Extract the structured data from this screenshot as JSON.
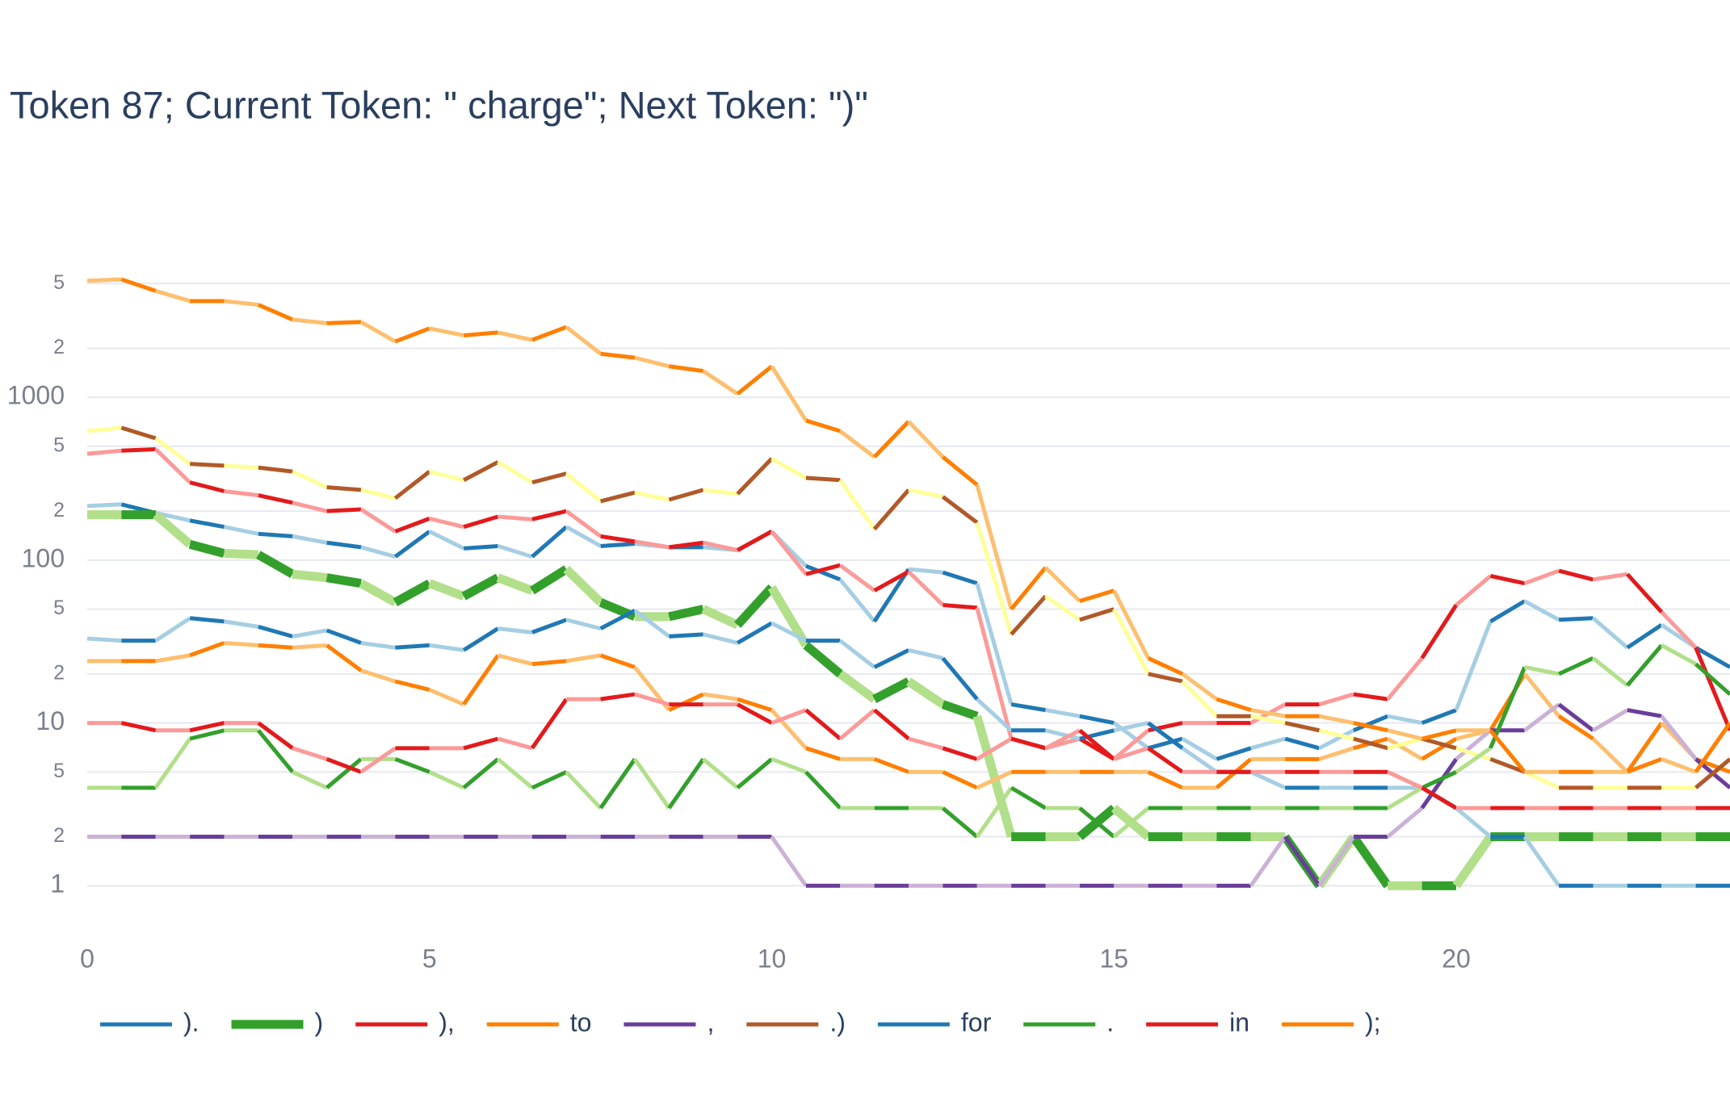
{
  "chart_data": {
    "type": "line",
    "title": "Token 87; Current Token: \" charge\"; Next Token: \")\"",
    "log_y": true,
    "grid": true,
    "x": [
      0,
      0.5,
      1,
      1.5,
      2,
      2.5,
      3,
      3.5,
      4,
      4.5,
      5,
      5.5,
      6,
      6.5,
      7,
      7.5,
      8,
      8.5,
      9,
      9.5,
      10,
      10.5,
      11,
      11.5,
      12,
      12.5,
      13,
      13.5,
      14,
      14.5,
      15,
      15.5,
      16,
      16.5,
      17,
      17.5,
      18,
      18.5,
      19,
      19.5,
      20,
      20.5,
      21,
      21.5,
      22,
      22.5,
      23,
      23.5,
      24
    ],
    "xlim": [
      0,
      24
    ],
    "xticks": [
      0,
      5,
      10,
      15,
      20
    ],
    "ylim": [
      0.5,
      8000
    ],
    "yticks": [
      1,
      2,
      5,
      10,
      {
        "value": 20,
        "label": "2"
      },
      {
        "value": 50,
        "label": "5"
      },
      100,
      {
        "value": 200,
        "label": "2"
      },
      {
        "value": 500,
        "label": "5"
      },
      1000,
      {
        "value": 2000,
        "label": "2"
      },
      {
        "value": 5000,
        "label": "5"
      }
    ],
    "series": [
      {
        "name": ").",
        "color": "#1f78b4",
        "light_color": "#a6cee3",
        "line_width": 5,
        "values": [
          215,
          220,
          195,
          175,
          160,
          145,
          140,
          128,
          120,
          105,
          150,
          118,
          122,
          105,
          160,
          122,
          126,
          120,
          120,
          115,
          150,
          92,
          76,
          42,
          88,
          84,
          72,
          13,
          12,
          11,
          10,
          7,
          8,
          6,
          7,
          8,
          7,
          9,
          11,
          10,
          12,
          42,
          56,
          43,
          44,
          29,
          40,
          29,
          22
        ]
      },
      {
        "name": ")",
        "color": "#33a02c",
        "light_color": "#b2df8a",
        "line_width": 11,
        "values": [
          190,
          190,
          190,
          125,
          110,
          108,
          82,
          78,
          72,
          55,
          72,
          60,
          78,
          65,
          88,
          55,
          45,
          45,
          50,
          40,
          68,
          30,
          20,
          14,
          18,
          13,
          11,
          2,
          2,
          2,
          3,
          2,
          2,
          2,
          2,
          2,
          1,
          2,
          1,
          1,
          1,
          2,
          2,
          2,
          2,
          2,
          2,
          2,
          2
        ]
      },
      {
        "name": "),",
        "color": "#e31a1c",
        "light_color": "#fb9a99",
        "line_width": 5,
        "values": [
          450,
          470,
          480,
          300,
          265,
          250,
          225,
          200,
          205,
          150,
          180,
          160,
          185,
          178,
          200,
          140,
          130,
          120,
          128,
          115,
          150,
          82,
          93,
          65,
          85,
          53,
          51,
          8,
          7,
          8,
          6,
          9,
          10,
          10,
          10,
          13,
          13,
          15,
          14,
          25,
          53,
          80,
          72,
          86,
          76,
          82,
          48,
          29,
          9
        ]
      },
      {
        "name": "to",
        "color": "#ff7f00",
        "light_color": "#fdbf6f",
        "line_width": 5,
        "values": [
          24,
          24,
          24,
          26,
          31,
          30,
          29,
          30,
          21,
          18,
          16,
          13,
          26,
          23,
          24,
          26,
          22,
          12,
          15,
          14,
          12,
          7,
          6,
          6,
          5,
          5,
          4,
          5,
          5,
          5,
          5,
          5,
          4,
          4,
          6,
          6,
          6,
          7,
          8,
          6,
          8,
          9,
          20,
          11,
          8,
          5,
          10,
          6,
          5
        ]
      },
      {
        "name": ",",
        "color": "#6a3d9a",
        "light_color": "#cab2d6",
        "line_width": 5,
        "values": [
          2,
          2,
          2,
          2,
          2,
          2,
          2,
          2,
          2,
          2,
          2,
          2,
          2,
          2,
          2,
          2,
          2,
          2,
          2,
          2,
          2,
          1,
          1,
          1,
          1,
          1,
          1,
          1,
          1,
          1,
          1,
          1,
          1,
          1,
          1,
          2,
          1,
          2,
          2,
          3,
          6,
          9,
          9,
          13,
          9,
          12,
          11,
          6,
          4
        ]
      },
      {
        "name": ".)",
        "color": "#b15928",
        "light_color": "#ffff99",
        "line_width": 5,
        "values": [
          620,
          650,
          560,
          390,
          380,
          370,
          350,
          280,
          270,
          240,
          350,
          310,
          400,
          300,
          340,
          230,
          260,
          235,
          270,
          255,
          420,
          320,
          310,
          155,
          270,
          245,
          170,
          35,
          60,
          43,
          50,
          20,
          18,
          11,
          11,
          10,
          9,
          8,
          7,
          8,
          7,
          6,
          5,
          4,
          4,
          4,
          4,
          4,
          6
        ]
      },
      {
        "name": "for",
        "color": "#1f78b4",
        "light_color": "#a6cee3",
        "line_width": 5,
        "values": [
          33,
          32,
          32,
          44,
          42,
          39,
          34,
          37,
          31,
          29,
          30,
          28,
          38,
          36,
          43,
          38,
          49,
          34,
          35,
          31,
          41,
          32,
          32,
          22,
          28,
          25,
          14,
          9,
          9,
          8,
          9,
          10,
          7,
          5,
          5,
          4,
          4,
          4,
          4,
          4,
          3,
          2,
          2,
          1,
          1,
          1,
          1,
          1,
          1
        ]
      },
      {
        "name": ".",
        "color": "#33a02c",
        "light_color": "#b2df8a",
        "line_width": 5,
        "values": [
          4,
          4,
          4,
          8,
          9,
          9,
          5,
          4,
          6,
          6,
          5,
          4,
          6,
          4,
          5,
          3,
          6,
          3,
          6,
          4,
          6,
          5,
          3,
          3,
          3,
          3,
          2,
          4,
          3,
          3,
          2,
          3,
          3,
          3,
          3,
          3,
          3,
          3,
          3,
          4,
          5,
          7,
          22,
          20,
          25,
          17,
          30,
          23,
          15
        ]
      },
      {
        "name": "in",
        "color": "#e31a1c",
        "light_color": "#fb9a99",
        "line_width": 5,
        "values": [
          10,
          10,
          9,
          9,
          10,
          10,
          7,
          6,
          5,
          7,
          7,
          7,
          8,
          7,
          14,
          14,
          15,
          13,
          13,
          13,
          10,
          12,
          8,
          12,
          8,
          7,
          6,
          8,
          7,
          9,
          6,
          7,
          5,
          5,
          5,
          5,
          5,
          5,
          5,
          4,
          3,
          3,
          3,
          3,
          3,
          3,
          3,
          3,
          3
        ]
      },
      {
        "name": ");",
        "color": "#ff7f00",
        "light_color": "#fdbf6f",
        "line_width": 5,
        "values": [
          5200,
          5300,
          4500,
          3900,
          3900,
          3700,
          3000,
          2850,
          2900,
          2200,
          2650,
          2400,
          2500,
          2250,
          2700,
          1850,
          1750,
          1550,
          1450,
          1050,
          1550,
          720,
          620,
          430,
          710,
          430,
          290,
          50,
          90,
          56,
          65,
          25,
          20,
          14,
          12,
          11,
          11,
          10,
          9,
          8,
          9,
          9,
          5,
          5,
          5,
          5,
          6,
          5,
          10
        ]
      }
    ]
  }
}
